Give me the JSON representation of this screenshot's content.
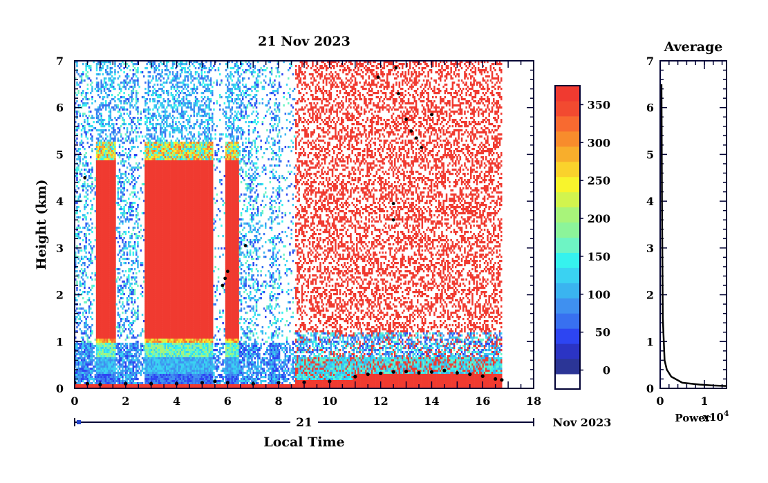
{
  "chart_data": [
    {
      "type": "heatmap",
      "title": "21 Nov 2023",
      "xlabel": "Local Time",
      "ylabel": "Height (km)",
      "xlim": [
        0,
        18
      ],
      "ylim": [
        0,
        7
      ],
      "x_ticks": [
        "0",
        "2",
        "4",
        "6",
        "8",
        "10",
        "12",
        "14",
        "16",
        "18"
      ],
      "y_ticks": [
        "0",
        "1",
        "2",
        "3",
        "4",
        "5",
        "6",
        "7"
      ],
      "date_axis": {
        "day": "21",
        "label": "Nov 2023"
      },
      "data_end_hour": 16.75,
      "colorbar": {
        "ticks": [
          "0",
          "50",
          "100",
          "150",
          "200",
          "250",
          "300",
          "350"
        ],
        "tick_values": [
          0,
          50,
          100,
          150,
          200,
          250,
          300,
          350
        ],
        "range": [
          -25,
          375
        ],
        "colors": [
          "#ffffff",
          "#2b3596",
          "#2b34c4",
          "#2d45f2",
          "#3870f0",
          "#3f90f0",
          "#3ab4f0",
          "#3ad2f2",
          "#36f2ee",
          "#6ef4c4",
          "#8cf49a",
          "#a8f47a",
          "#d2f44e",
          "#f8f42c",
          "#fad22c",
          "#f8ae2c",
          "#f88c2c",
          "#f86a30",
          "#f24a30",
          "#f03a30"
        ]
      },
      "mixing_layer_km": [
        {
          "x": 0.0,
          "y": 0.12
        },
        {
          "x": 0.5,
          "y": 0.1
        },
        {
          "x": 1.0,
          "y": 0.08
        },
        {
          "x": 2.0,
          "y": 0.1
        },
        {
          "x": 3.0,
          "y": 0.1
        },
        {
          "x": 4.0,
          "y": 0.1
        },
        {
          "x": 5.0,
          "y": 0.12
        },
        {
          "x": 5.5,
          "y": 0.15
        },
        {
          "x": 6.0,
          "y": 0.12
        },
        {
          "x": 7.0,
          "y": 0.1
        },
        {
          "x": 8.0,
          "y": 0.12
        },
        {
          "x": 9.0,
          "y": 0.13
        },
        {
          "x": 10.0,
          "y": 0.15
        },
        {
          "x": 11.0,
          "y": 0.25
        },
        {
          "x": 11.5,
          "y": 0.3
        },
        {
          "x": 12.0,
          "y": 0.32
        },
        {
          "x": 12.5,
          "y": 0.35
        },
        {
          "x": 13.0,
          "y": 0.36
        },
        {
          "x": 13.5,
          "y": 0.33
        },
        {
          "x": 14.0,
          "y": 0.35
        },
        {
          "x": 14.5,
          "y": 0.38
        },
        {
          "x": 15.0,
          "y": 0.33
        },
        {
          "x": 15.5,
          "y": 0.3
        },
        {
          "x": 16.0,
          "y": 0.26
        },
        {
          "x": 16.5,
          "y": 0.2
        },
        {
          "x": 16.75,
          "y": 0.18
        }
      ],
      "cloud_points_km": [
        {
          "x": 5.8,
          "y": 2.2
        },
        {
          "x": 5.9,
          "y": 2.35
        },
        {
          "x": 6.0,
          "y": 2.5
        },
        {
          "x": 6.7,
          "y": 3.05
        },
        {
          "x": 0.4,
          "y": 4.5
        },
        {
          "x": 11.9,
          "y": 6.65
        },
        {
          "x": 12.6,
          "y": 6.85
        },
        {
          "x": 12.7,
          "y": 6.3
        },
        {
          "x": 13.0,
          "y": 5.75
        },
        {
          "x": 13.2,
          "y": 5.5
        },
        {
          "x": 13.4,
          "y": 5.35
        },
        {
          "x": 13.6,
          "y": 5.15
        },
        {
          "x": 14.0,
          "y": 5.85
        },
        {
          "x": 12.5,
          "y": 3.6
        },
        {
          "x": 12.5,
          "y": 3.95
        }
      ]
    },
    {
      "type": "line",
      "title": "Average",
      "xlabel": "Power",
      "x_exponent_label": "x10",
      "x_exponent": "4",
      "x_ticks": [
        "0",
        "1"
      ],
      "xlim": [
        0,
        1.5
      ],
      "ylim": [
        0,
        7
      ],
      "y_ticks": [
        "0",
        "1",
        "2",
        "3",
        "4",
        "5",
        "6",
        "7"
      ],
      "series": [
        {
          "x": [
            0.03,
            0.04,
            0.06,
            0.1,
            0.15,
            0.25,
            0.5,
            0.9,
            1.2,
            1.5
          ],
          "y": [
            6.5,
            4.0,
            1.5,
            0.6,
            0.4,
            0.25,
            0.12,
            0.08,
            0.06,
            0.05
          ]
        }
      ]
    }
  ]
}
